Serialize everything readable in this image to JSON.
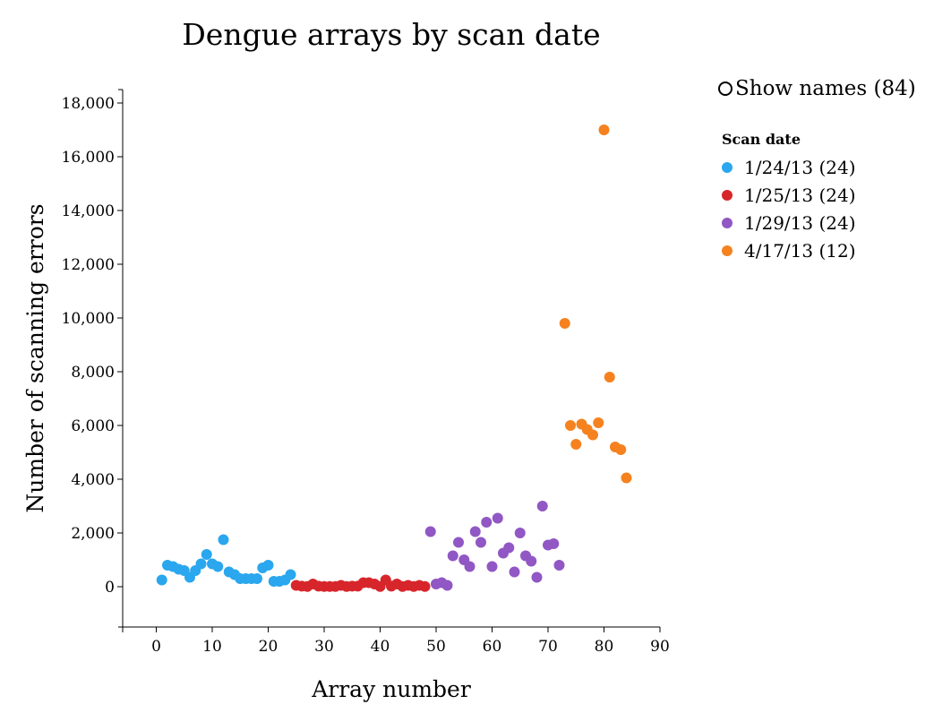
{
  "chart_data": {
    "type": "scatter",
    "title": "Dengue arrays by scan date",
    "xlabel": "Array number",
    "ylabel": "Number of scanning errors",
    "xlim": [
      -6,
      90
    ],
    "ylim": [
      -1500,
      18500
    ],
    "xticks": [
      0,
      10,
      20,
      30,
      40,
      50,
      60,
      70,
      80,
      90
    ],
    "yticks": [
      0,
      2000,
      4000,
      6000,
      8000,
      10000,
      12000,
      14000,
      16000,
      18000
    ],
    "ytick_labels": [
      "0",
      "2,000",
      "4,000",
      "6,000",
      "8,000",
      "10,000",
      "12,000",
      "14,000",
      "16,000",
      "18,000"
    ],
    "legend_title": "Scan date",
    "legend_position": "right",
    "series": [
      {
        "name": "1/24/13 (24)",
        "color": "#2aa7ee",
        "x": [
          1,
          2,
          3,
          4,
          5,
          6,
          7,
          8,
          9,
          10,
          11,
          12,
          13,
          14,
          15,
          16,
          17,
          18,
          19,
          20,
          21,
          22,
          23,
          24
        ],
        "y": [
          250,
          800,
          750,
          650,
          600,
          350,
          600,
          850,
          1200,
          850,
          750,
          1750,
          550,
          450,
          300,
          300,
          300,
          300,
          700,
          800,
          200,
          200,
          250,
          450
        ]
      },
      {
        "name": "1/25/13 (24)",
        "color": "#d7262b",
        "x": [
          25,
          26,
          27,
          28,
          29,
          30,
          31,
          32,
          33,
          34,
          35,
          36,
          37,
          38,
          39,
          40,
          41,
          42,
          43,
          44,
          45,
          46,
          47,
          48
        ],
        "y": [
          50,
          20,
          10,
          100,
          20,
          10,
          10,
          10,
          50,
          10,
          20,
          20,
          150,
          150,
          100,
          10,
          250,
          20,
          100,
          10,
          50,
          10,
          50,
          10
        ]
      },
      {
        "name": "1/29/13 (24)",
        "color": "#9157c4",
        "x": [
          49,
          50,
          51,
          52,
          53,
          54,
          55,
          56,
          57,
          58,
          59,
          60,
          61,
          62,
          63,
          64,
          65,
          66,
          67,
          68,
          69,
          70,
          71,
          72
        ],
        "y": [
          2050,
          100,
          150,
          50,
          1150,
          1650,
          1000,
          750,
          2050,
          1650,
          2400,
          750,
          2550,
          1250,
          1450,
          550,
          2000,
          1150,
          950,
          350,
          3000,
          1550,
          1600,
          800
        ]
      },
      {
        "name": "4/17/13 (12)",
        "color": "#f5821f",
        "x": [
          73,
          74,
          75,
          76,
          77,
          78,
          79,
          80,
          81,
          82,
          83,
          84
        ],
        "y": [
          9800,
          6000,
          5300,
          6050,
          5850,
          5650,
          6100,
          17000,
          7800,
          5200,
          5100,
          4050
        ]
      }
    ]
  },
  "controls": {
    "show_names_label": "Show names (84)"
  }
}
